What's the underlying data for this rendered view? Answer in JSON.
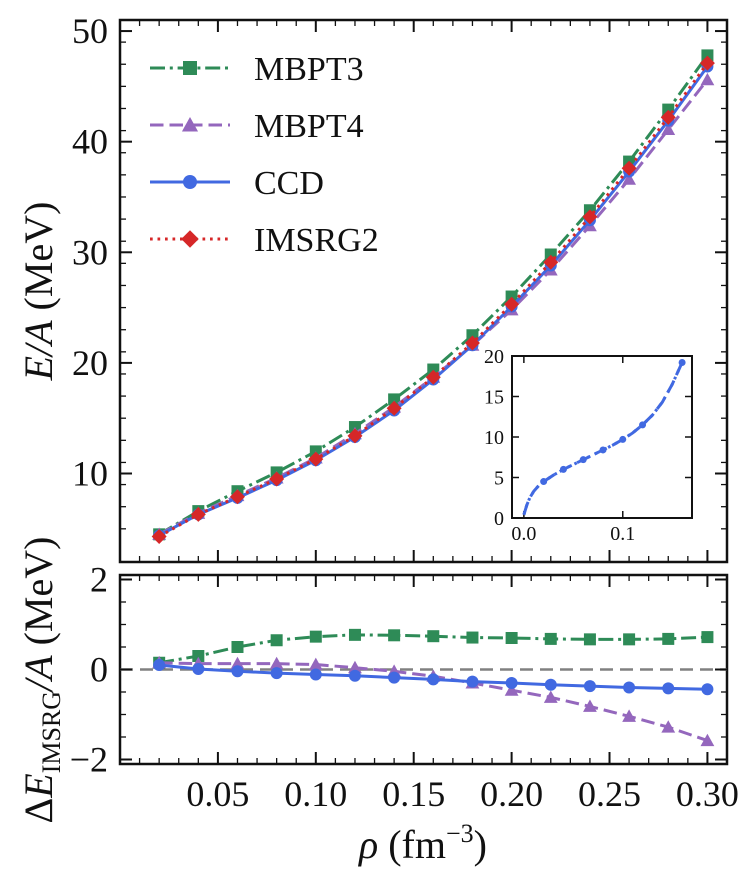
{
  "chart_data": [
    {
      "type": "line",
      "panel": "top",
      "title": "",
      "xlabel": "",
      "ylabel": "E/A (MeV)",
      "ylabel_parts": {
        "var": "E/A",
        "unit": "(MeV)"
      },
      "xlim": [
        0.0,
        0.31
      ],
      "ylim": [
        2.0,
        51.0
      ],
      "yticks": [
        "10",
        "20",
        "30",
        "40",
        "50"
      ],
      "legend_position": "upper-left",
      "x": [
        0.02,
        0.04,
        0.06,
        0.08,
        0.1,
        0.12,
        0.14,
        0.16,
        0.18,
        0.2,
        0.22,
        0.24,
        0.26,
        0.28,
        0.3
      ],
      "series": [
        {
          "name": "MBPT3",
          "color": "#2e8b57",
          "linestyle": "dashdot",
          "marker": "square",
          "values": [
            4.5,
            6.6,
            8.4,
            10.1,
            12.0,
            14.2,
            16.7,
            19.4,
            22.5,
            26.0,
            29.8,
            33.8,
            38.2,
            42.9,
            47.8
          ]
        },
        {
          "name": "MBPT4",
          "color": "#9467bd",
          "linestyle": "dashed",
          "marker": "triangle",
          "values": [
            4.5,
            6.4,
            8.0,
            9.6,
            11.4,
            13.6,
            16.0,
            18.7,
            21.6,
            24.8,
            28.4,
            32.4,
            36.6,
            41.1,
            45.6
          ]
        },
        {
          "name": "CCD",
          "color": "#4169e1",
          "linestyle": "solid",
          "marker": "circle",
          "values": [
            4.4,
            6.3,
            7.8,
            9.4,
            11.2,
            13.3,
            15.7,
            18.5,
            21.6,
            25.1,
            28.8,
            32.9,
            37.3,
            41.9,
            46.8
          ]
        },
        {
          "name": "IMSRG2",
          "color": "#d62728",
          "linestyle": "dotted",
          "marker": "diamond",
          "values": [
            4.3,
            6.3,
            7.9,
            9.5,
            11.3,
            13.4,
            15.9,
            18.7,
            21.8,
            25.3,
            29.1,
            33.2,
            37.6,
            42.2,
            47.1
          ]
        }
      ]
    },
    {
      "type": "line",
      "panel": "inset",
      "xlim": [
        -0.012,
        0.17
      ],
      "ylim": [
        0,
        20
      ],
      "xticks": [
        "0.0",
        "0.1"
      ],
      "yticks": [
        "0",
        "5",
        "10",
        "15",
        "20"
      ],
      "x": [
        0.0,
        0.003,
        0.006,
        0.01,
        0.015,
        0.02,
        0.025,
        0.03,
        0.04,
        0.05,
        0.06,
        0.07,
        0.08,
        0.09,
        0.1,
        0.11,
        0.12,
        0.13,
        0.14,
        0.15,
        0.16
      ],
      "series": [
        {
          "color": "#4169e1",
          "linestyle": "dashed",
          "values": [
            0.4,
            1.6,
            2.5,
            3.3,
            4.0,
            4.5,
            4.9,
            5.3,
            6.0,
            6.6,
            7.2,
            7.8,
            8.4,
            9.0,
            9.7,
            10.5,
            11.5,
            12.7,
            14.3,
            16.5,
            19.2
          ]
        },
        {
          "color": "#4169e1",
          "linestyle": "dotted",
          "marker": "circle",
          "values": [
            0.4,
            1.6,
            2.5,
            3.3,
            4.0,
            4.5,
            4.9,
            5.3,
            6.0,
            6.6,
            7.2,
            7.8,
            8.4,
            9.0,
            9.7,
            10.5,
            11.5,
            12.7,
            14.3,
            16.5,
            19.2
          ],
          "marker_x": [
            0.02,
            0.04,
            0.06,
            0.08,
            0.1,
            0.12,
            0.16
          ]
        }
      ]
    },
    {
      "type": "line",
      "panel": "bottom",
      "xlabel": "ρ (fm−3)",
      "xlabel_parts": {
        "var": "ρ",
        "unit": "(fm",
        "exp": "−3",
        "close": ")"
      },
      "ylabel": "ΔE IMSRG/A (MeV)",
      "ylabel_parts": {
        "delta": "Δ",
        "var": "E",
        "sub": "IMSRG",
        "rest": "/A",
        "unit": "(MeV)"
      },
      "xlim": [
        0.0,
        0.31
      ],
      "ylim": [
        -2.1,
        2.1
      ],
      "xticks": [
        "0.05",
        "0.10",
        "0.15",
        "0.20",
        "0.25",
        "0.30"
      ],
      "yticks": [
        "−2",
        "0",
        "2"
      ],
      "reference_line": {
        "y": 0,
        "color": "#808080",
        "linestyle": "dashed"
      },
      "x": [
        0.02,
        0.04,
        0.06,
        0.08,
        0.1,
        0.12,
        0.14,
        0.16,
        0.18,
        0.2,
        0.22,
        0.24,
        0.26,
        0.28,
        0.3
      ],
      "series": [
        {
          "name": "MBPT3",
          "color": "#2e8b57",
          "linestyle": "dashdot",
          "marker": "square",
          "values": [
            0.15,
            0.3,
            0.5,
            0.65,
            0.73,
            0.77,
            0.76,
            0.74,
            0.71,
            0.7,
            0.68,
            0.67,
            0.67,
            0.68,
            0.72
          ]
        },
        {
          "name": "MBPT4",
          "color": "#9467bd",
          "linestyle": "dashed",
          "marker": "triangle",
          "values": [
            0.15,
            0.13,
            0.13,
            0.13,
            0.11,
            0.04,
            -0.04,
            -0.15,
            -0.3,
            -0.46,
            -0.62,
            -0.82,
            -1.04,
            -1.28,
            -1.58
          ]
        },
        {
          "name": "CCD",
          "color": "#4169e1",
          "linestyle": "solid",
          "marker": "circle",
          "values": [
            0.1,
            0.01,
            -0.04,
            -0.08,
            -0.11,
            -0.14,
            -0.18,
            -0.22,
            -0.27,
            -0.3,
            -0.34,
            -0.37,
            -0.4,
            -0.42,
            -0.44
          ]
        }
      ]
    }
  ]
}
